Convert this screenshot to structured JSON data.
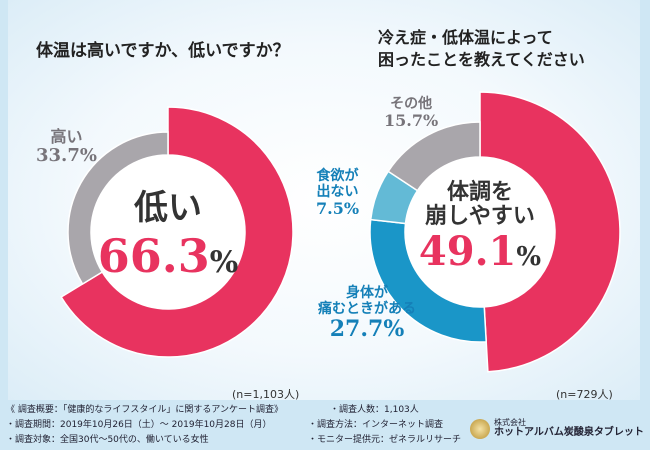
{
  "chart_data": [
    {
      "type": "pie",
      "title": "体温は高いですか、低いですか？",
      "sample": "(n=1,103人)",
      "slices": [
        {
          "label": "低い",
          "value": 66.3,
          "color": "#e8335f"
        },
        {
          "label": "高い",
          "value": 33.7,
          "color": "#a9a6ab"
        }
      ]
    },
    {
      "type": "pie",
      "title": "冷え症・低体温によって困ったことを教えてください",
      "sample": "(n=729人)",
      "slices": [
        {
          "label": "体調を崩しやすい",
          "value": 49.1,
          "color": "#e8335f"
        },
        {
          "label": "身体が痛むときがある",
          "value": 27.7,
          "color": "#1a96c8"
        },
        {
          "label": "食欲が出ない",
          "value": 7.5,
          "color": "#63bad6"
        },
        {
          "label": "その他",
          "value": 15.7,
          "color": "#a9a6ab"
        }
      ]
    }
  ],
  "left": {
    "title": "体温は高いですか、低いですか？",
    "center_label": "低い",
    "center_int": "66.3",
    "pct": "%",
    "high_label": "高い",
    "high_value": "33.7%",
    "n": "(n=1,103人)"
  },
  "right": {
    "title1": "冷え症・低体温によって",
    "title2": "困ったことを教えてください",
    "center1": "体調を",
    "center2": "崩しやすい",
    "center_int": "49.1",
    "pct": "%",
    "other_label": "その他",
    "other_value": "15.7%",
    "appetite1": "食欲が",
    "appetite2": "出ない",
    "appetite_value": "7.5%",
    "pain1": "身体が",
    "pain2": "痛むときがある",
    "pain_value": "27.7%",
    "n": "(n=729人)"
  },
  "footer": {
    "summary": "《 調査概要：「健康的なライフスタイル」に関するアンケート調査》",
    "period": "・調査期間：2019年10月26日（土）～ 2019年10月28日（月）",
    "target": "・調査対象：全国30代～50代の、働いている女性",
    "method": "・調査方法：インターネット調査",
    "monitor": "・モニター提供元：ゼネラルリサーチ",
    "count": "・調査人数：1,103人",
    "company": "株式会社",
    "brand": "ホットアルバム炭酸泉タブレット"
  }
}
